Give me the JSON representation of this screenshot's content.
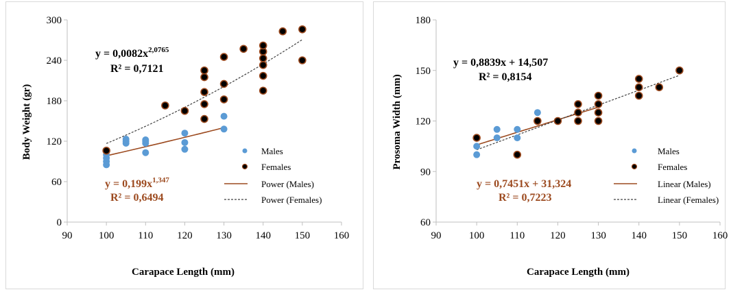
{
  "colors": {
    "males": "#5b9bd5",
    "females": "#000000",
    "females_ring": "#9c4a1f",
    "male_trend": "#9c4a1f",
    "female_trend": "#404040",
    "male_eq": "#9c4a1f",
    "female_eq": "#000000"
  },
  "chart_data": [
    {
      "type": "scatter",
      "xlabel": "Carapace Length (mm)",
      "ylabel": "Body Weight (gr)",
      "xlim": [
        90,
        160
      ],
      "ylim": [
        0,
        300
      ],
      "xticks": [
        "90",
        "100",
        "110",
        "120",
        "130",
        "140",
        "150",
        "160"
      ],
      "yticks": [
        "0",
        "60",
        "120",
        "180",
        "240",
        "300"
      ],
      "grid": false,
      "legend_position": "right",
      "series": [
        {
          "name": "Males",
          "points": [
            [
              100,
              85
            ],
            [
              100,
              90
            ],
            [
              100,
              95
            ],
            [
              100,
              100
            ],
            [
              105,
              117
            ],
            [
              105,
              120
            ],
            [
              105,
              123
            ],
            [
              110,
              103
            ],
            [
              110,
              117
            ],
            [
              110,
              120
            ],
            [
              110,
              122
            ],
            [
              120,
              108
            ],
            [
              120,
              118
            ],
            [
              120,
              132
            ],
            [
              130,
              138
            ],
            [
              130,
              157
            ]
          ]
        },
        {
          "name": "Females",
          "points": [
            [
              100,
              106
            ],
            [
              115,
              173
            ],
            [
              120,
              165
            ],
            [
              125,
              153
            ],
            [
              125,
              175
            ],
            [
              125,
              193
            ],
            [
              125,
              215
            ],
            [
              125,
              225
            ],
            [
              130,
              182
            ],
            [
              130,
              205
            ],
            [
              130,
              245
            ],
            [
              135,
              257
            ],
            [
              140,
              195
            ],
            [
              140,
              217
            ],
            [
              140,
              233
            ],
            [
              140,
              243
            ],
            [
              140,
              253
            ],
            [
              140,
              262
            ],
            [
              145,
              283
            ],
            [
              150,
              240
            ],
            [
              150,
              286
            ]
          ]
        }
      ],
      "trendlines": [
        {
          "name": "Power (Males)",
          "model": "power",
          "a": 0.199,
          "b": 1.347,
          "x_range": [
            100,
            130
          ]
        },
        {
          "name": "Power (Females)",
          "model": "power",
          "a": 0.0082,
          "b": 2.0765,
          "x_range": [
            100,
            150
          ]
        }
      ],
      "equations": {
        "females_main": "y = 0,0082x",
        "females_sup": "2,0765",
        "females_r2": "R² = 0,7121",
        "males_main": "y = 0,199x",
        "males_sup": "1,347",
        "males_r2": "R² = 0,6494"
      }
    },
    {
      "type": "scatter",
      "xlabel": "Carapace  Length  (mm)",
      "ylabel": "Prosoma Width  (mm)",
      "xlim": [
        90,
        160
      ],
      "ylim": [
        60,
        180
      ],
      "xticks": [
        "90",
        "100",
        "110",
        "120",
        "130",
        "140",
        "150",
        "160"
      ],
      "yticks": [
        "60",
        "90",
        "120",
        "150",
        "180"
      ],
      "grid": false,
      "legend_position": "right",
      "series": [
        {
          "name": "Males",
          "points": [
            [
              100,
              100
            ],
            [
              100,
              105
            ],
            [
              100,
              110
            ],
            [
              105,
              110
            ],
            [
              105,
              115
            ],
            [
              110,
              110
            ],
            [
              110,
              115
            ],
            [
              115,
              125
            ]
          ]
        },
        {
          "name": "Females",
          "points": [
            [
              100,
              110
            ],
            [
              110,
              100
            ],
            [
              115,
              120
            ],
            [
              120,
              120
            ],
            [
              125,
              120
            ],
            [
              125,
              125
            ],
            [
              125,
              130
            ],
            [
              130,
              120
            ],
            [
              130,
              125
            ],
            [
              130,
              130
            ],
            [
              130,
              135
            ],
            [
              140,
              135
            ],
            [
              140,
              140
            ],
            [
              140,
              145
            ],
            [
              145,
              140
            ],
            [
              150,
              150
            ]
          ]
        }
      ],
      "trendlines": [
        {
          "name": "Linear (Males)",
          "model": "linear",
          "a": 0.7451,
          "b": 31.324,
          "x_range": [
            100,
            130
          ]
        },
        {
          "name": "Linear (Females)",
          "model": "linear",
          "a": 0.8839,
          "b": 14.507,
          "x_range": [
            100,
            150
          ]
        }
      ],
      "equations": {
        "females_main": "y = 0,8839x + 14,507",
        "females_r2": "R² = 0,8154",
        "males_main": "y = 0,7451x + 31,324",
        "males_r2": "R² = 0,7223"
      }
    }
  ]
}
